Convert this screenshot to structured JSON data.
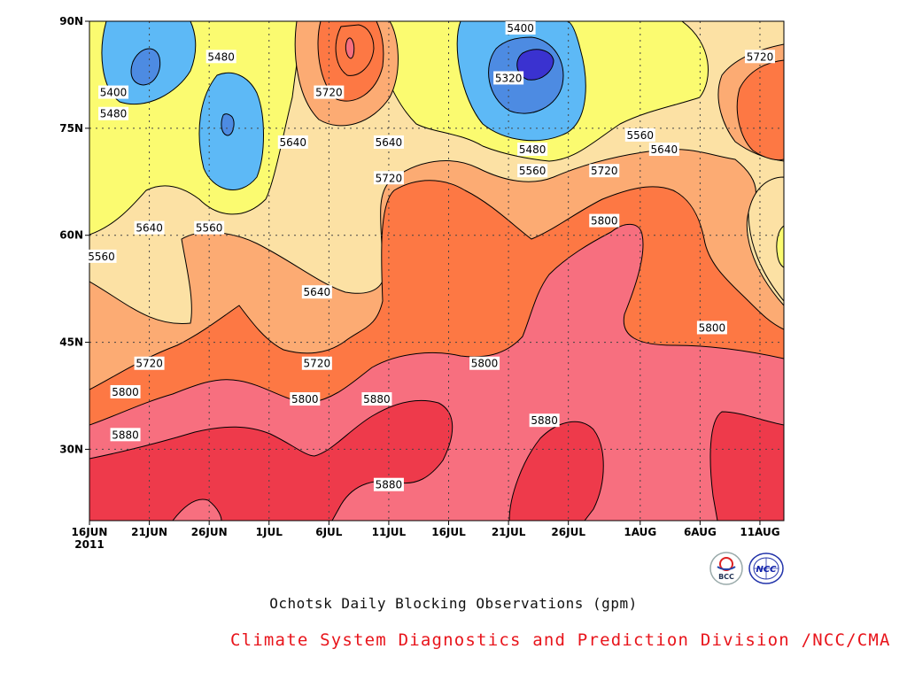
{
  "chart_data": {
    "type": "contour",
    "title": "Ochotsk Daily Blocking Observations (gpm)",
    "credit": "Climate System Diagnostics and Prediction Division /NCC/CMA",
    "xlabel": "",
    "ylabel": "",
    "x_ticks": [
      "16JUN",
      "21JUN",
      "26JUN",
      "1JUL",
      "6JUL",
      "11JUL",
      "16JUL",
      "21JUL",
      "26JUL",
      "1AUG",
      "6AUG",
      "11AUG"
    ],
    "x_year_label": "2011",
    "y_ticks": [
      "30N",
      "45N",
      "60N",
      "75N",
      "90N"
    ],
    "ylim_deg": [
      20,
      90
    ],
    "grid": true,
    "levels": [
      5320,
      5400,
      5480,
      5560,
      5640,
      5720,
      5800,
      5880
    ],
    "fill_colors": {
      "below_5320": "#3a32d0",
      "5320_5400": "#4d8be2",
      "5400_5480": "#5db9f6",
      "5480_5560": "#fbfb70",
      "5560_5640": "#fce1a4",
      "5640_5720": "#fcab73",
      "5720_5800": "#fd7844",
      "5800_5880": "#f76f7f",
      "above_5880": "#ee3a4b"
    },
    "contour_labels": [
      {
        "text": "5400",
        "date": "18JUN",
        "lat": 80
      },
      {
        "text": "5480",
        "date": "18JUN",
        "lat": 77
      },
      {
        "text": "5480",
        "date": "27JUN",
        "lat": 85
      },
      {
        "text": "5720",
        "date": "6JUL",
        "lat": 80
      },
      {
        "text": "5400",
        "date": "22JUL",
        "lat": 89
      },
      {
        "text": "5320",
        "date": "21JUL",
        "lat": 82
      },
      {
        "text": "5720",
        "date": "11AUG",
        "lat": 85
      },
      {
        "text": "5640",
        "date": "3JUL",
        "lat": 73
      },
      {
        "text": "5560",
        "date": "1AUG",
        "lat": 74
      },
      {
        "text": "5640",
        "date": "11JUL",
        "lat": 73
      },
      {
        "text": "5480",
        "date": "23JUL",
        "lat": 72
      },
      {
        "text": "5640",
        "date": "3AUG",
        "lat": 72
      },
      {
        "text": "5560",
        "date": "23JUL",
        "lat": 69
      },
      {
        "text": "5720",
        "date": "11JUL",
        "lat": 68
      },
      {
        "text": "5720",
        "date": "29JUL",
        "lat": 69
      },
      {
        "text": "5800",
        "date": "29JUL",
        "lat": 62
      },
      {
        "text": "5640",
        "date": "21JUN",
        "lat": 61
      },
      {
        "text": "5560",
        "date": "26JUN",
        "lat": 61
      },
      {
        "text": "5560",
        "date": "17JUN",
        "lat": 57
      },
      {
        "text": "5640",
        "date": "5JUL",
        "lat": 52
      },
      {
        "text": "5720",
        "date": "21JUN",
        "lat": 42
      },
      {
        "text": "5720",
        "date": "5JUL",
        "lat": 42
      },
      {
        "text": "5800",
        "date": "19JUL",
        "lat": 42
      },
      {
        "text": "5800",
        "date": "7AUG",
        "lat": 47
      },
      {
        "text": "5800",
        "date": "19JUN",
        "lat": 38
      },
      {
        "text": "5800",
        "date": "4JUL",
        "lat": 37
      },
      {
        "text": "5880",
        "date": "10JUL",
        "lat": 37
      },
      {
        "text": "5880",
        "date": "24JUL",
        "lat": 34
      },
      {
        "text": "5880",
        "date": "19JUN",
        "lat": 32
      },
      {
        "text": "5880",
        "date": "11JUL",
        "lat": 25
      }
    ]
  },
  "logos": {
    "bcc_text": "BCC",
    "ncc_text": "NCC"
  }
}
